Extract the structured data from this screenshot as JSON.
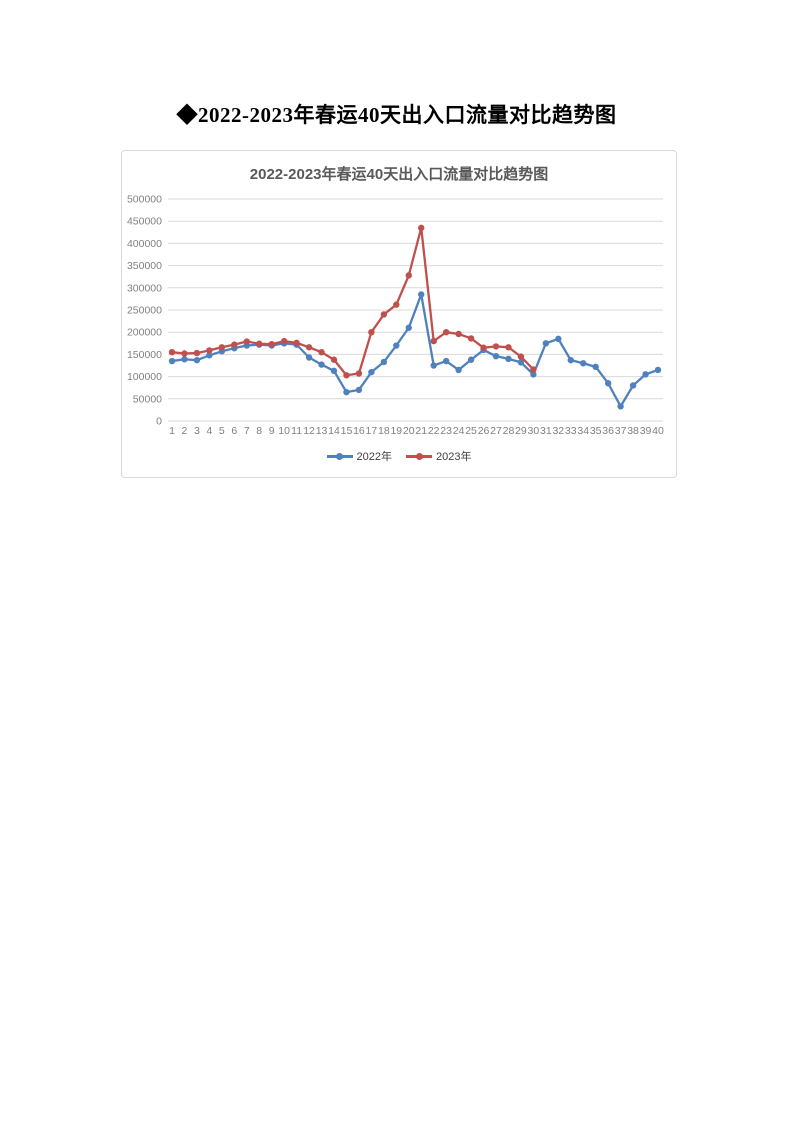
{
  "page": {
    "title": "◆2022-2023年春运40天出入口流量对比趋势图"
  },
  "colors": {
    "chart_title": "#595959",
    "axis_text": "#808080",
    "gridline": "#d9d9d9",
    "chart_border": "#d9d9d9",
    "series_2022": "#4F81BD",
    "series_2023": "#C0504D"
  },
  "chart_data": {
    "type": "line",
    "title": "2022-2023年春运40天出入口流量对比趋势图",
    "xlabel": "",
    "ylabel": "",
    "ylim": [
      0,
      500000
    ],
    "y_tick_step": 50000,
    "y_ticks": [
      0,
      50000,
      100000,
      150000,
      200000,
      250000,
      300000,
      350000,
      400000,
      450000,
      500000
    ],
    "grid": true,
    "legend_position": "bottom",
    "x_categories": [
      1,
      2,
      3,
      4,
      5,
      6,
      7,
      8,
      9,
      10,
      11,
      12,
      13,
      14,
      15,
      16,
      17,
      18,
      19,
      20,
      21,
      22,
      23,
      24,
      25,
      26,
      27,
      28,
      29,
      30,
      31,
      32,
      33,
      34,
      35,
      36,
      37,
      38,
      39,
      40
    ],
    "series": [
      {
        "name": "2022年",
        "color": "#4F81BD",
        "values": [
          135000,
          139000,
          137000,
          148000,
          157000,
          164000,
          170000,
          172000,
          170000,
          175000,
          172000,
          143000,
          127000,
          113000,
          65000,
          70000,
          110000,
          133000,
          170000,
          210000,
          285000,
          125000,
          135000,
          115000,
          138000,
          160000,
          146000,
          140000,
          132000,
          105000,
          175000,
          185000,
          137000,
          130000,
          122000,
          85000,
          33000,
          80000,
          105000,
          115000
        ]
      },
      {
        "name": "2023年",
        "color": "#C0504D",
        "values": [
          155000,
          152000,
          153000,
          159000,
          166000,
          172000,
          179000,
          174000,
          173000,
          180000,
          176000,
          166000,
          155000,
          138000,
          103000,
          107000,
          200000,
          240000,
          262000,
          328000,
          435000,
          180000,
          200000,
          196000,
          186000,
          165000,
          168000,
          166000,
          145000,
          116000
        ]
      }
    ]
  }
}
